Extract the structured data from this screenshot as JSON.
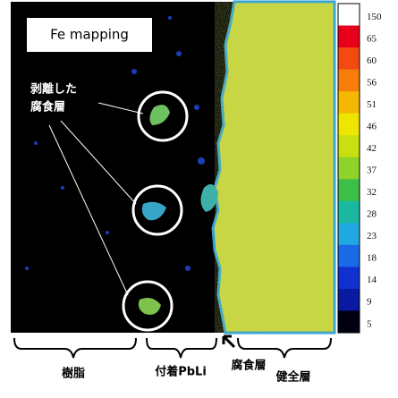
{
  "label_box": "Fe mapping",
  "annotation": [
    "剥離した",
    "腐食層"
  ],
  "colorbar": {
    "labels": [
      150,
      65,
      60,
      56,
      51,
      46,
      42,
      37,
      32,
      28,
      23,
      18,
      14,
      9,
      5
    ]
  },
  "regions": [
    "樹脂",
    "付着PbLi",
    "腐食層",
    "健全層"
  ]
}
